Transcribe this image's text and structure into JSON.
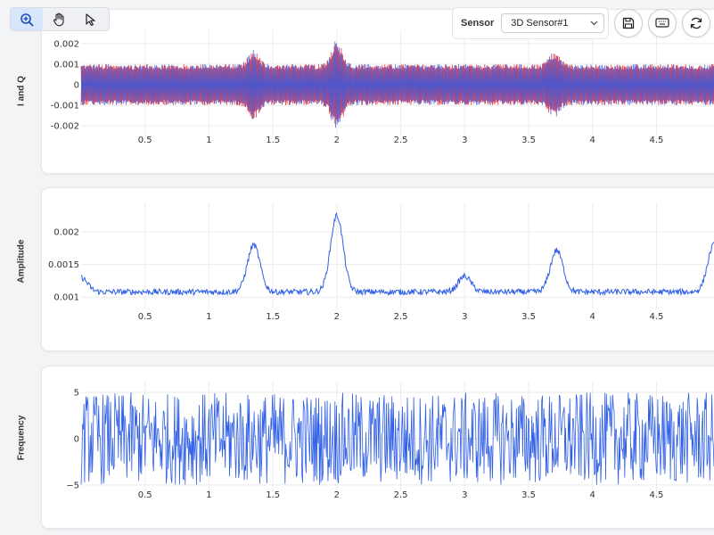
{
  "toolbar": {
    "tools": [
      {
        "name": "zoom",
        "icon": "zoom-in-icon",
        "active": true
      },
      {
        "name": "pan",
        "icon": "hand-icon",
        "active": false
      },
      {
        "name": "select",
        "icon": "pointer-icon",
        "active": false
      }
    ]
  },
  "sensor": {
    "label": "Sensor",
    "selected": "3D Sensor#1",
    "options": [
      "3D Sensor#1"
    ]
  },
  "actions": [
    {
      "name": "save",
      "icon": "save-icon"
    },
    {
      "name": "keyboard",
      "icon": "keyboard-icon"
    },
    {
      "name": "refresh",
      "icon": "refresh-icon"
    }
  ],
  "colors": {
    "i_series": "#ff1f1f",
    "q_series": "#3b5bdb",
    "amplitude": "#2f5fe6",
    "frequency": "#2f5fe6",
    "grid": "#ececec",
    "active_tool": "#d7e6fb"
  },
  "chart_data": [
    {
      "type": "line",
      "ylabel": "I and Q",
      "xlim": [
        0,
        4.95
      ],
      "ylim": [
        -0.0023,
        0.0023
      ],
      "x_ticks": [
        0.5,
        1,
        1.5,
        2,
        2.5,
        3,
        3.5,
        4,
        4.5
      ],
      "x_tick_labels": [
        "0.5",
        "1",
        "1.5",
        "2",
        "2.5",
        "3",
        "3.5",
        "4",
        "4.5"
      ],
      "y_ticks": [
        0.002,
        0.001,
        0,
        -0.001,
        -0.002
      ],
      "y_tick_labels": [
        "0.002",
        "0.001",
        "0",
        "-0.001",
        "-0.002"
      ],
      "series": [
        {
          "color": "#ff1f1f",
          "base_amplitude": 0.001,
          "bursts": [
            {
              "x": 1.35,
              "peak": 0.0017
            },
            {
              "x": 2.0,
              "peak": 0.0022
            },
            {
              "x": 3.7,
              "peak": 0.0016
            }
          ]
        },
        {
          "color": "#3b5bdb",
          "base_amplitude": 0.001,
          "bursts": [
            {
              "x": 1.35,
              "peak": 0.0017
            },
            {
              "x": 2.0,
              "peak": 0.0022
            },
            {
              "x": 3.7,
              "peak": 0.0016
            }
          ]
        }
      ]
    },
    {
      "type": "line",
      "ylabel": "Amplitude",
      "xlim": [
        0,
        4.95
      ],
      "ylim": [
        0.00088,
        0.00233
      ],
      "x_ticks": [
        0.5,
        1,
        1.5,
        2,
        2.5,
        3,
        3.5,
        4,
        4.5
      ],
      "x_tick_labels": [
        "0.5",
        "1",
        "1.5",
        "2",
        "2.5",
        "3",
        "3.5",
        "4",
        "4.5"
      ],
      "y_ticks": [
        0.002,
        0.0015,
        0.001
      ],
      "y_tick_labels": [
        "0.002",
        "0.0015",
        "0.001"
      ],
      "series": [
        {
          "color": "#2f5fe6",
          "baseline": 0.00108,
          "peaks": [
            {
              "x": 0.0,
              "value": 0.0013
            },
            {
              "x": 1.35,
              "value": 0.0018
            },
            {
              "x": 2.0,
              "value": 0.00225
            },
            {
              "x": 3.0,
              "value": 0.00132
            },
            {
              "x": 3.72,
              "value": 0.00172
            },
            {
              "x": 4.95,
              "value": 0.0018
            }
          ]
        }
      ]
    },
    {
      "type": "line",
      "ylabel": "Frequency",
      "xlim": [
        0,
        4.95
      ],
      "ylim": [
        -5.4,
        5.4
      ],
      "x_ticks": [
        0.5,
        1,
        1.5,
        2,
        2.5,
        3,
        3.5,
        4,
        4.5
      ],
      "x_tick_labels": [
        "0.5",
        "1",
        "1.5",
        "2",
        "2.5",
        "3",
        "3.5",
        "4",
        "4.5"
      ],
      "y_ticks": [
        5,
        0,
        -5
      ],
      "y_tick_labels": [
        "5",
        "0",
        "−5"
      ],
      "series": [
        {
          "color": "#2f5fe6",
          "range": [
            -5,
            5
          ]
        }
      ]
    }
  ]
}
